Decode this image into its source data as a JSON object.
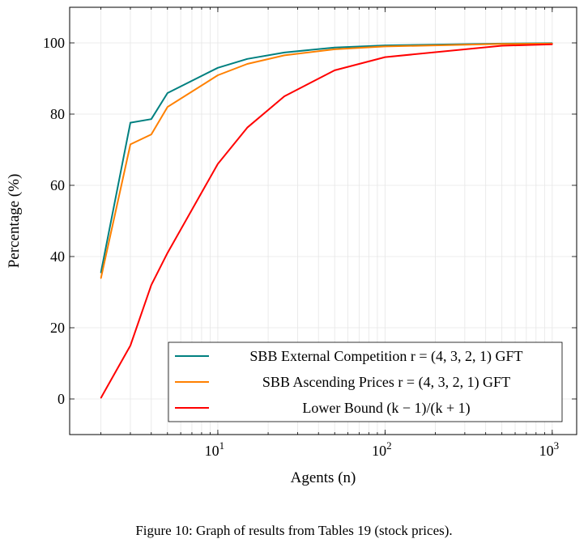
{
  "chart_data": {
    "type": "line",
    "xlabel": "Agents (n)",
    "ylabel": "Percentage (%)",
    "xscale": "log",
    "xlim": [
      1.3,
      1400
    ],
    "ylim": [
      -10,
      110
    ],
    "x_ticks": [
      {
        "value": 10,
        "label": "10^1"
      },
      {
        "value": 100,
        "label": "10^2"
      },
      {
        "value": 1000,
        "label": "10^3"
      }
    ],
    "y_ticks": [
      0,
      20,
      40,
      60,
      80,
      100
    ],
    "grid": true,
    "legend_position": "bottom-right",
    "series": [
      {
        "name": "SBB External Competition r = (4, 3, 2, 1) GFT",
        "color": "#008080",
        "x": [
          2,
          3,
          4,
          5,
          10,
          15,
          25,
          50,
          100,
          500,
          1000
        ],
        "y": [
          35.5,
          77.6,
          78.6,
          85.9,
          93.0,
          95.5,
          97.3,
          98.7,
          99.3,
          99.8,
          99.9
        ]
      },
      {
        "name": "SBB Ascending Prices r = (4, 3, 2, 1) GFT",
        "color": "#ff8000",
        "x": [
          2,
          3,
          4,
          5,
          10,
          15,
          25,
          50,
          100,
          500,
          1000
        ],
        "y": [
          33.9,
          71.5,
          74.3,
          82.0,
          90.9,
          94.1,
          96.5,
          98.2,
          99.0,
          99.7,
          99.8
        ]
      },
      {
        "name": "Lower Bound (k − 1)/(k + 1)",
        "color": "#ff0000",
        "x": [
          2,
          3,
          4,
          5,
          10,
          15,
          25,
          50,
          100,
          500,
          1000
        ],
        "y": [
          0.3,
          15.0,
          32.0,
          41.0,
          66.0,
          76.2,
          85.0,
          92.3,
          96.0,
          99.2,
          99.6
        ]
      }
    ]
  },
  "caption": "Figure 10: Graph of results from Tables 19 (stock prices)."
}
